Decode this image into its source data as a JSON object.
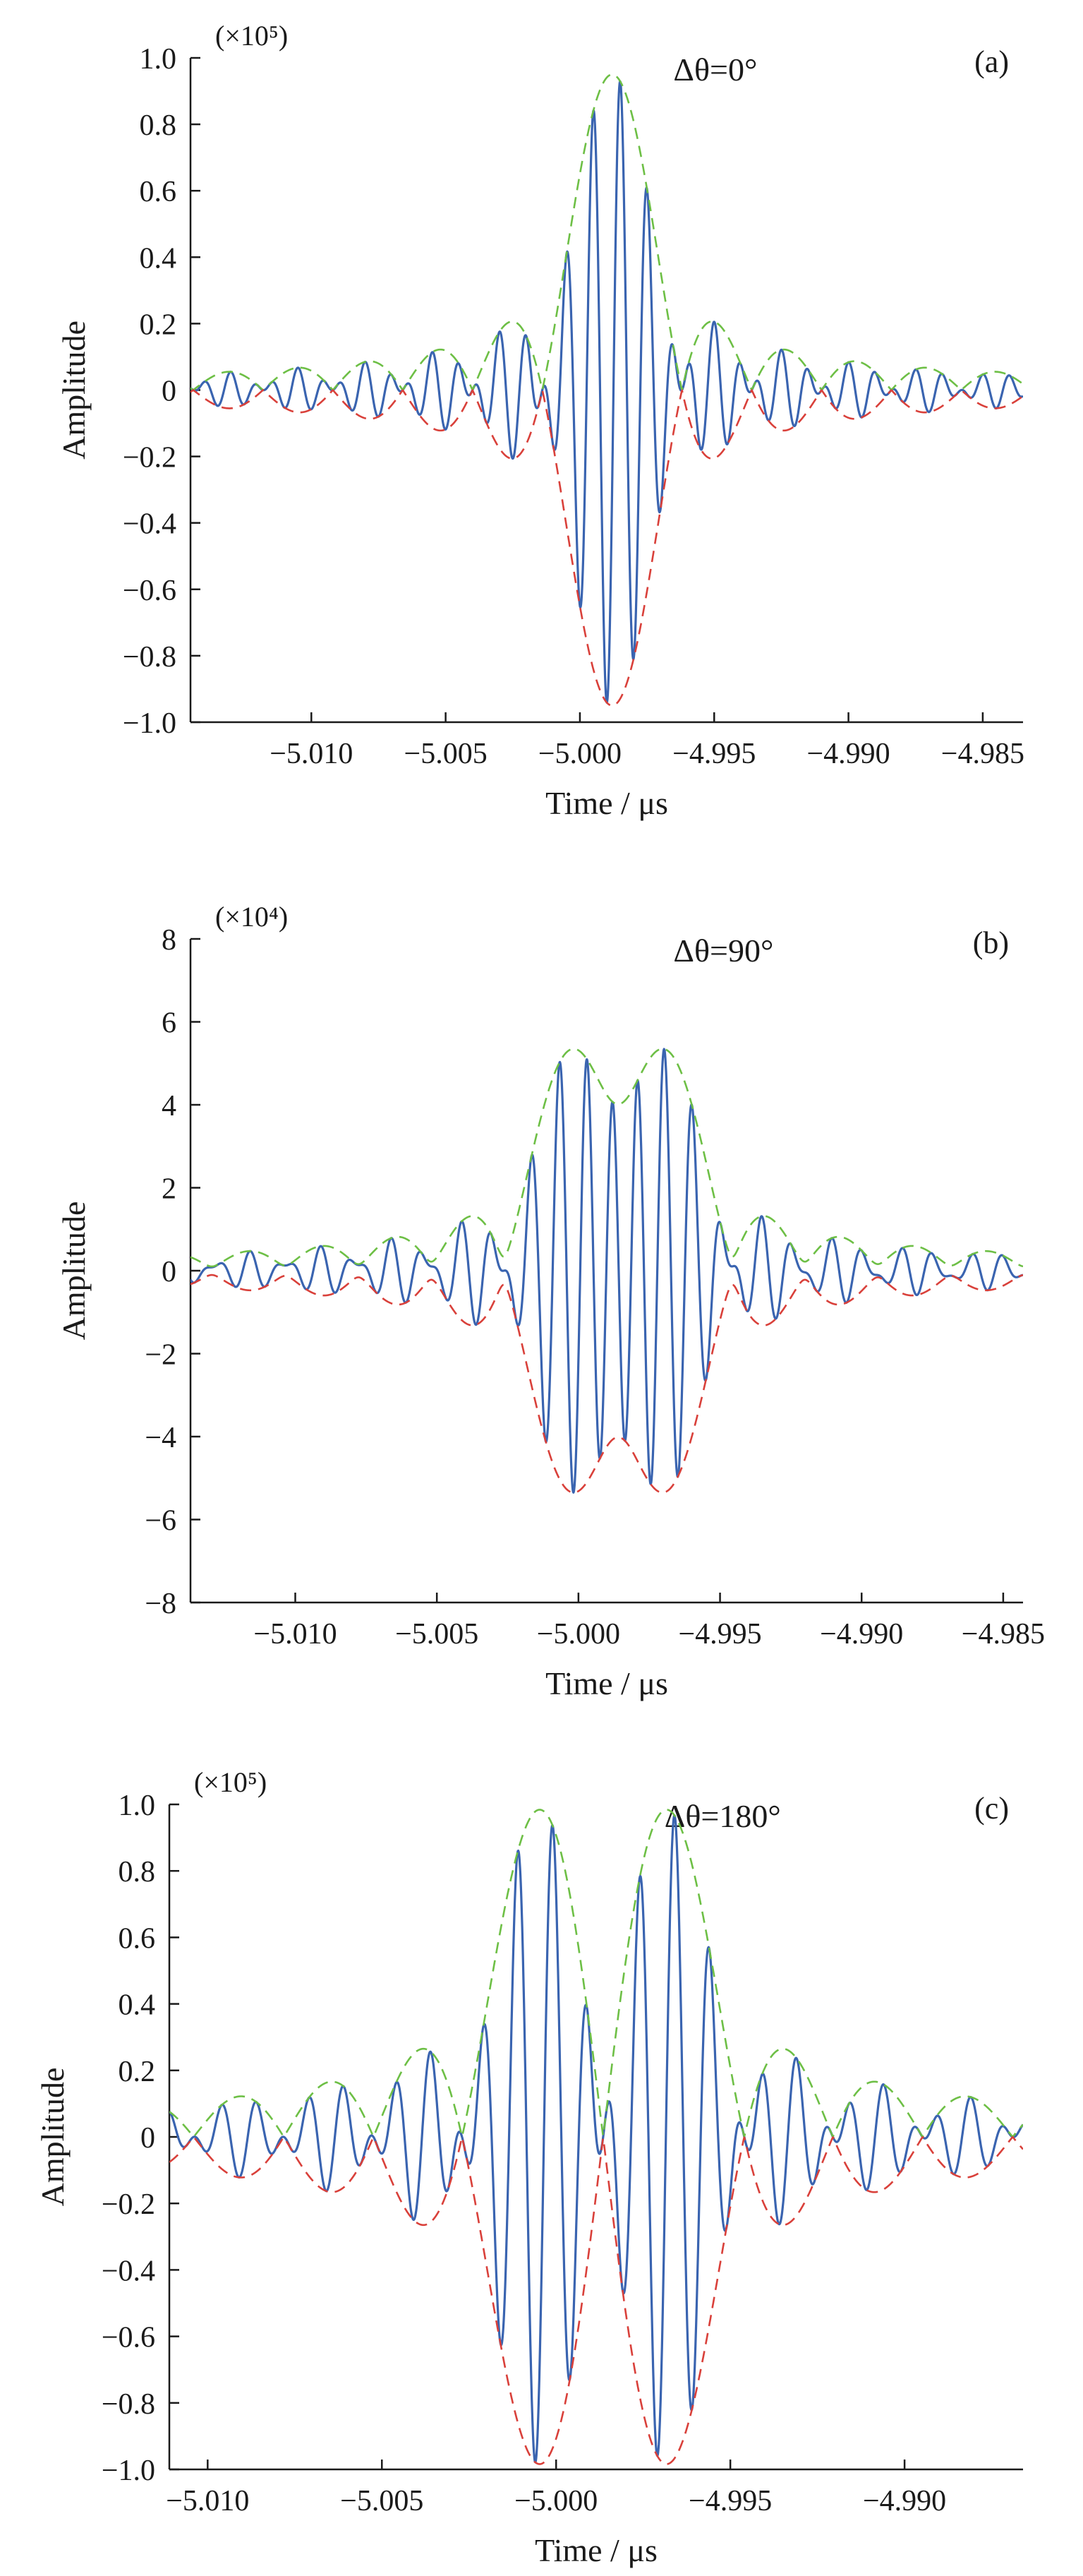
{
  "figure": {
    "x_axis_label": "Time / μs",
    "y_axis_label": "Amplitude",
    "colors": {
      "signal": "#3a64b0",
      "upper_envelope": "#6dbf45",
      "lower_envelope": "#d9403a",
      "axis": "#1a1a1a"
    }
  },
  "chart_data": [
    {
      "type": "line",
      "panel_label": "(a)",
      "annotation": "Δθ=0°",
      "scale_label": "(×10⁵)",
      "xlabel": "Time / μs",
      "ylabel": "Amplitude",
      "xlim": [
        -5.0145,
        -4.9835
      ],
      "ylim": [
        -1.0,
        1.0
      ],
      "xticks": [
        -5.01,
        -5.005,
        -5.0,
        -4.995,
        -4.99,
        -4.985
      ],
      "xtick_labels": [
        "−5.010",
        "−5.005",
        "−5.000",
        "−4.995",
        "−4.990",
        "−4.985"
      ],
      "yticks": [
        1.0,
        0.8,
        0.6,
        0.4,
        0.2,
        0,
        -0.2,
        -0.4,
        -0.6,
        -0.8,
        -1.0
      ],
      "ytick_labels": [
        "1.0",
        "0.8",
        "0.6",
        "0.4",
        "0.2",
        "0",
        "−0.2",
        "−0.4",
        "−0.6",
        "−0.8",
        "−1.0"
      ],
      "grid": false,
      "signal": {
        "frequency_cycles_per_us": 1000,
        "pulses": [
          {
            "center_us": -4.9988,
            "amplitude": 0.95,
            "halfwidth_us": 0.0026,
            "phase_deg": 0
          }
        ]
      },
      "series": []
    },
    {
      "type": "line",
      "panel_label": "(b)",
      "annotation": "Δθ=90°",
      "scale_label": "(×10⁴)",
      "xlabel": "Time / μs",
      "ylabel": "Amplitude",
      "xlim": [
        -5.0137,
        -4.9843
      ],
      "ylim": [
        -8,
        8
      ],
      "xticks": [
        -5.01,
        -5.005,
        -5.0,
        -4.995,
        -4.99,
        -4.985
      ],
      "xtick_labels": [
        "−5.010",
        "−5.005",
        "−5.000",
        "−4.995",
        "−4.990",
        "−4.985"
      ],
      "yticks": [
        8,
        6,
        4,
        2,
        0,
        -2,
        -4,
        -6,
        -8
      ],
      "ytick_labels": [
        "8",
        "6",
        "4",
        "2",
        "0",
        "−2",
        "−4",
        "−6",
        "−8"
      ],
      "grid": false,
      "signal": {
        "frequency_cycles_per_us": 1000,
        "pulses": [
          {
            "center_us": -5.0001,
            "amplitude": 5.3,
            "halfwidth_us": 0.0026,
            "phase_deg": 0
          },
          {
            "center_us": -4.9971,
            "amplitude": 5.3,
            "halfwidth_us": 0.0026,
            "phase_deg": 90
          }
        ]
      },
      "series": []
    },
    {
      "type": "line",
      "panel_label": "(c)",
      "annotation": "Δθ=180°",
      "scale_label": "(×10⁵)",
      "xlabel": "Time / μs",
      "ylabel": "Amplitude",
      "xlim": [
        -5.0111,
        -4.9866
      ],
      "ylim": [
        -1.0,
        1.0
      ],
      "xticks": [
        -5.01,
        -5.005,
        -5.0,
        -4.995,
        -4.99
      ],
      "xtick_labels": [
        "−5.010",
        "−5.005",
        "−5.000",
        "−4.995",
        "−4.990"
      ],
      "yticks": [
        1.0,
        0.8,
        0.6,
        0.4,
        0.2,
        0,
        -0.2,
        -0.4,
        -0.6,
        -0.8,
        -1.0
      ],
      "ytick_labels": [
        "1.0",
        "0.8",
        "0.6",
        "0.4",
        "0.2",
        "0",
        "−0.2",
        "−0.4",
        "−0.6",
        "−0.8",
        "−1.0"
      ],
      "grid": false,
      "signal": {
        "frequency_cycles_per_us": 1000,
        "pulses": [
          {
            "center_us": -5.0003,
            "amplitude": 0.82,
            "halfwidth_us": 0.0026,
            "phase_deg": 0
          },
          {
            "center_us": -4.997,
            "amplitude": 0.82,
            "halfwidth_us": 0.0026,
            "phase_deg": 180
          }
        ]
      },
      "series": []
    }
  ]
}
